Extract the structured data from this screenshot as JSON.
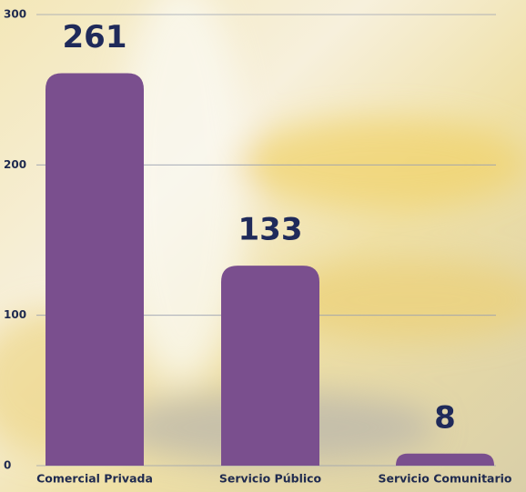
{
  "chart_data": {
    "type": "bar",
    "categories": [
      "Comercial Privada",
      "Servicio Público",
      "Servicio Comunitario"
    ],
    "values": [
      261,
      133,
      8
    ],
    "color": "#7a4f8e",
    "ylim": [
      0,
      300
    ],
    "yticks": [
      0,
      100,
      200,
      300
    ],
    "grid": true
  }
}
